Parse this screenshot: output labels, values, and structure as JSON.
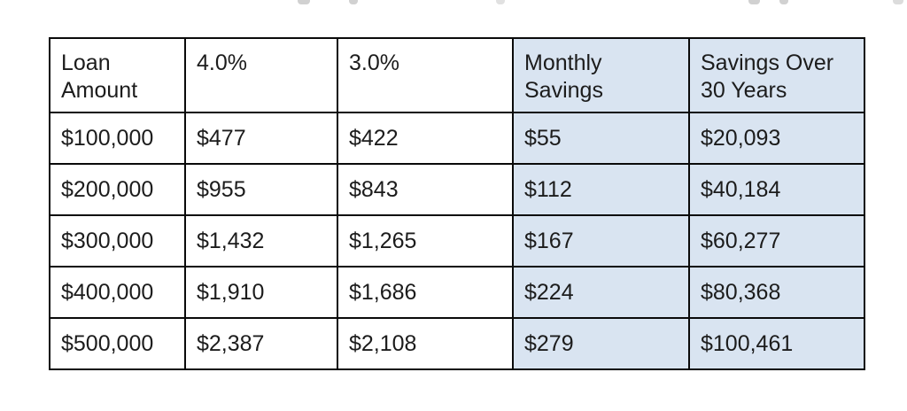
{
  "chart_data": {
    "type": "table",
    "description": "Mortgage refinance monthly payment comparison at 4.0% vs 3.0% interest with savings",
    "columns": [
      {
        "label": "Loan\nAmount",
        "highlighted": false
      },
      {
        "label": "4.0%",
        "highlighted": false
      },
      {
        "label": "3.0%",
        "highlighted": false
      },
      {
        "label": "Monthly\nSavings",
        "highlighted": true
      },
      {
        "label": "Savings Over\n30 Years",
        "highlighted": true
      }
    ],
    "rows": [
      [
        "$100,000",
        "$477",
        "$422",
        "$55",
        "$20,093"
      ],
      [
        "$200,000",
        "$955",
        "$843",
        "$112",
        "$40,184"
      ],
      [
        "$300,000",
        "$1,432",
        "$1,265",
        "$167",
        "$60,277"
      ],
      [
        "$400,000",
        "$1,910",
        "$1,686",
        "$224",
        "$80,368"
      ],
      [
        "$500,000",
        "$2,387",
        "$2,108",
        "$279",
        "$100,461"
      ]
    ],
    "layout": {
      "highlight_note": "last two columns filled light blue"
    }
  },
  "colors": {
    "highlight_fill": "#d9e4f1",
    "border": "#0a0a0a",
    "text": "#1c1c1c",
    "background": "#ffffff"
  }
}
